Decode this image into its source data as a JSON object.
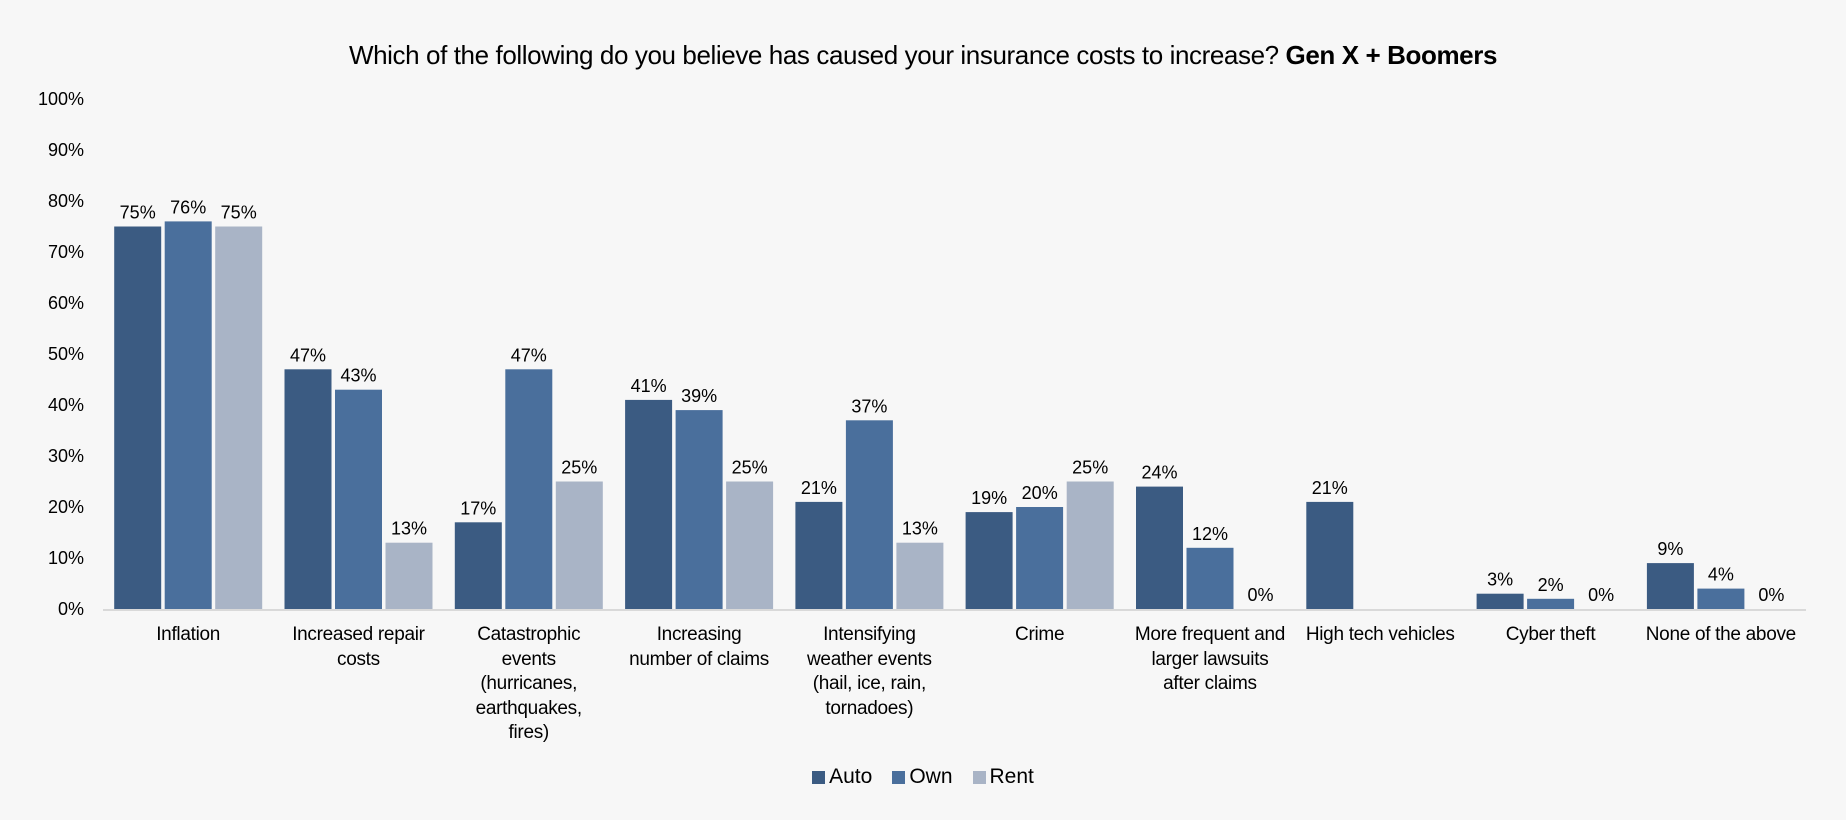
{
  "chart_data": {
    "type": "bar",
    "title": "Which of the following do you believe has caused your insurance costs to increase?",
    "title_emphasis": "Gen X + Boomers",
    "xlabel": "",
    "ylabel": "",
    "ylim": [
      0,
      100
    ],
    "yticks": [
      "0%",
      "10%",
      "20%",
      "30%",
      "40%",
      "50%",
      "60%",
      "70%",
      "80%",
      "90%",
      "100%"
    ],
    "grid": false,
    "legend_position": "bottom",
    "categories": [
      "Inflation",
      "Increased repair costs",
      "Catastrophic events (hurricanes, earthquakes, fires)",
      "Increasing number of claims",
      "Intensifying weather events (hail, ice, rain, tornadoes)",
      "Crime",
      "More frequent and larger lawsuits after claims",
      "High tech vehicles",
      "Cyber theft",
      "None of the above"
    ],
    "category_lines": [
      [
        "Inflation"
      ],
      [
        "Increased repair",
        "costs"
      ],
      [
        "Catastrophic",
        "events",
        "(hurricanes,",
        "earthquakes,",
        "fires)"
      ],
      [
        "Increasing",
        "number of claims"
      ],
      [
        "Intensifying",
        "weather events",
        "(hail, ice, rain,",
        "tornadoes)"
      ],
      [
        "Crime"
      ],
      [
        "More frequent and",
        "larger lawsuits",
        "after claims"
      ],
      [
        "High tech vehicles"
      ],
      [
        "Cyber theft"
      ],
      [
        "None of the above"
      ]
    ],
    "series": [
      {
        "name": "Auto",
        "color": "#3b5b82",
        "values": [
          75,
          47,
          17,
          41,
          21,
          19,
          24,
          21,
          3,
          9
        ]
      },
      {
        "name": "Own",
        "color": "#4a6f9c",
        "values": [
          76,
          43,
          47,
          39,
          37,
          20,
          12,
          null,
          2,
          4
        ]
      },
      {
        "name": "Rent",
        "color": "#a9b4c6",
        "values": [
          75,
          13,
          25,
          25,
          13,
          25,
          0,
          null,
          0,
          0
        ]
      }
    ],
    "value_suffix": "%",
    "axis_color": "#d9d9d9"
  }
}
